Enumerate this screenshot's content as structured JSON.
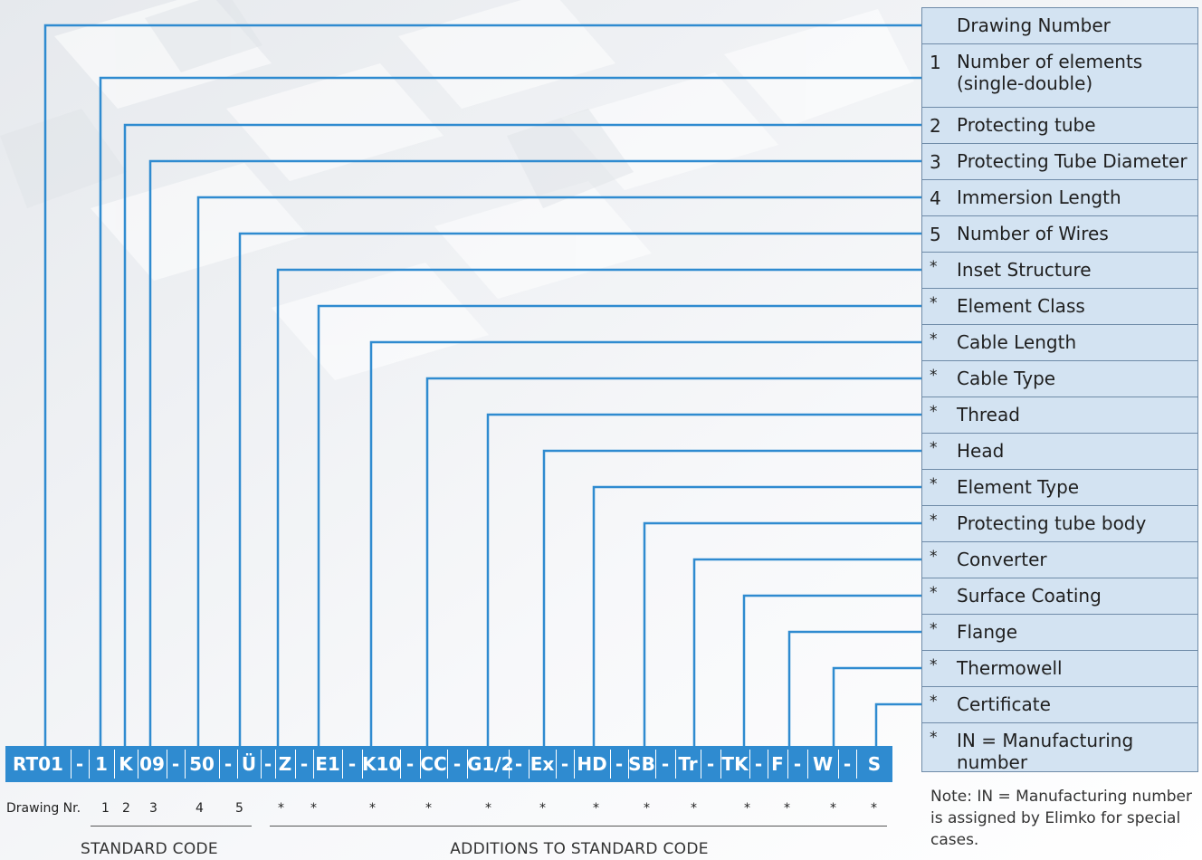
{
  "legend": [
    {
      "mark": "",
      "label": "Drawing Number"
    },
    {
      "mark": "1",
      "label": "Number of elements (single-double)"
    },
    {
      "mark": "2",
      "label": "Protecting tube"
    },
    {
      "mark": "3",
      "label": "Protecting Tube Diameter"
    },
    {
      "mark": "4",
      "label": "Immersion Length"
    },
    {
      "mark": "5",
      "label": "Number of Wires"
    },
    {
      "mark": "*",
      "label": "Inset Structure"
    },
    {
      "mark": "*",
      "label": "Element Class"
    },
    {
      "mark": "*",
      "label": "Cable Length"
    },
    {
      "mark": "*",
      "label": "Cable Type"
    },
    {
      "mark": "*",
      "label": "Thread"
    },
    {
      "mark": "*",
      "label": "Head"
    },
    {
      "mark": "*",
      "label": "Element Type"
    },
    {
      "mark": "*",
      "label": "Protecting tube body"
    },
    {
      "mark": "*",
      "label": "Converter"
    },
    {
      "mark": "*",
      "label": "Surface Coating"
    },
    {
      "mark": "*",
      "label": "Flange"
    },
    {
      "mark": "*",
      "label": "Thermowell"
    },
    {
      "mark": "*",
      "label": "Certificate"
    },
    {
      "mark": "*",
      "label": "IN = Manufacturing number"
    }
  ],
  "code_segments": [
    "RT01",
    "-",
    "1",
    "K",
    "09",
    "-",
    "50",
    "-",
    "Ü",
    "-",
    "Z",
    "-",
    "E1",
    "-",
    "K10",
    "-",
    "CC",
    "-",
    "G1/2",
    "-",
    "Ex",
    "-",
    "HD",
    "-",
    "SB",
    "-",
    "Tr",
    "-",
    "TK",
    "-",
    "F",
    "-",
    "W",
    "-",
    "S"
  ],
  "index_labels": [
    "1",
    "2",
    "3",
    "4",
    "5",
    "*",
    "*",
    "*",
    "*",
    "*",
    "*",
    "*",
    "*",
    "*",
    "*",
    "*",
    "*",
    "*"
  ],
  "drawing_nr_label": "Drawing Nr.",
  "standard_code_caption": "STANDARD CODE",
  "additions_caption": "ADDITIONS TO STANDARD CODE",
  "note": "Note: IN = Manufacturing number is assigned by Elimko for special cases.",
  "colors": {
    "accent": "#2f8bd0",
    "legend_fill": "#d3e3f2",
    "legend_border": "#6f8ba8"
  }
}
